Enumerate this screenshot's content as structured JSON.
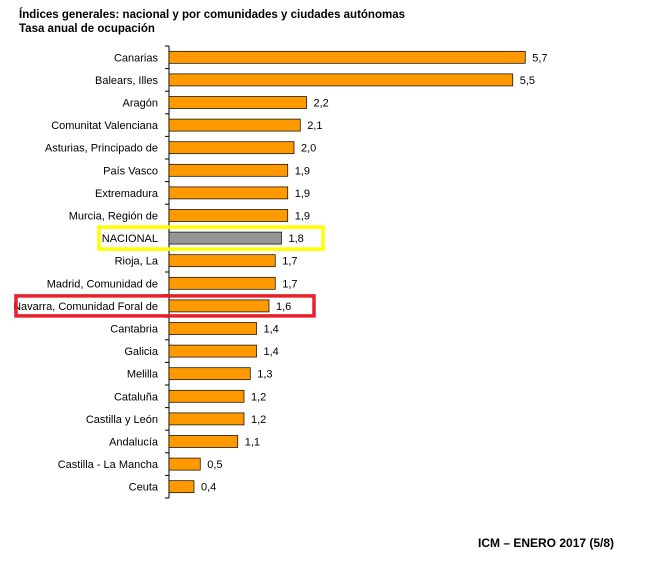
{
  "chart_data": {
    "type": "bar",
    "orientation": "horizontal",
    "title": "Índices generales: nacional y por comunidades y ciudades autónomas",
    "subtitle": "Tasa anual de ocupación",
    "categories": [
      "Canarias",
      "Balears, Illes",
      "Aragón",
      "Comunitat Valenciana",
      "Asturias, Principado de",
      "País Vasco",
      "Extremadura",
      "Murcia, Región de",
      "NACIONAL",
      "Rioja, La",
      "Madrid, Comunidad de",
      "Navarra, Comunidad Foral de",
      "Cantabria",
      "Galicia",
      "Melilla",
      "Cataluña",
      "Castilla y León",
      "Andalucía",
      "Castilla - La Mancha",
      "Ceuta"
    ],
    "values": [
      5.7,
      5.5,
      2.2,
      2.1,
      2.0,
      1.9,
      1.9,
      1.9,
      1.8,
      1.7,
      1.7,
      1.6,
      1.4,
      1.4,
      1.3,
      1.2,
      1.2,
      1.1,
      0.5,
      0.4
    ],
    "value_labels": [
      "5,7",
      "5,5",
      "2,2",
      "2,1",
      "2,0",
      "1,9",
      "1,9",
      "1,9",
      "1,8",
      "1,7",
      "1,7",
      "1,6",
      "1,4",
      "1,4",
      "1,3",
      "1,2",
      "1,2",
      "1,1",
      "0,5",
      "0,4"
    ],
    "xlim": [
      0,
      6
    ],
    "grid": false,
    "colors": {
      "bar": "#FF9900",
      "national_bar": "#969696",
      "bar_outline": "#000000"
    },
    "highlights": [
      {
        "category": "NACIONAL",
        "color": "#FFFF00"
      },
      {
        "category": "Navarra, Comunidad Foral de",
        "color": "#E8202A"
      }
    ]
  },
  "footer": "ICM – ENERO 2017 (5/8)"
}
